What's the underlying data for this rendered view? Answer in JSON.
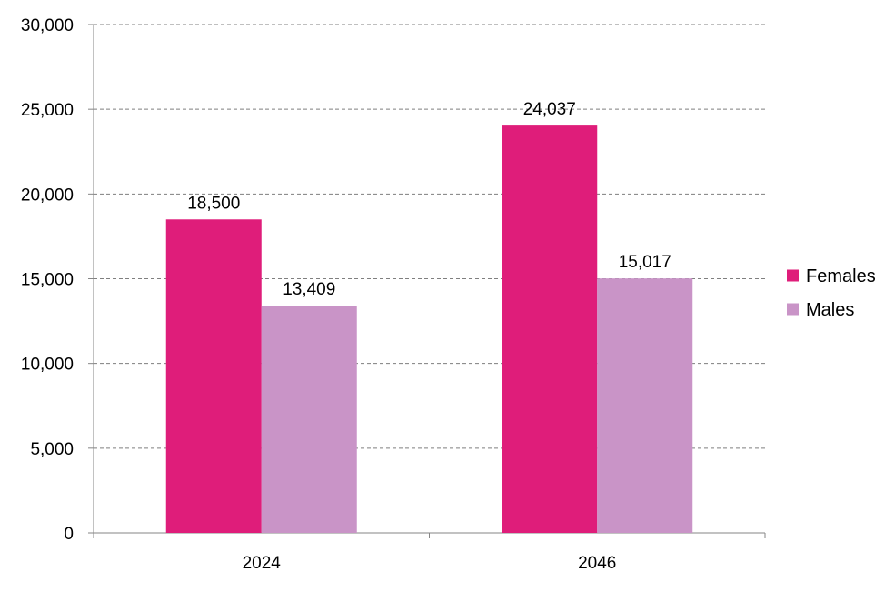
{
  "chart_data": {
    "type": "bar",
    "title": "",
    "xlabel": "",
    "ylabel": "",
    "categories": [
      "2024",
      "2046"
    ],
    "series": [
      {
        "name": "Females",
        "values": [
          18500,
          24037
        ],
        "color": "#DF1D7A"
      },
      {
        "name": "Males",
        "values": [
          13409,
          15017
        ],
        "color": "#C994C7"
      }
    ],
    "data_labels": [
      [
        "18,500",
        "24,037"
      ],
      [
        "13,409",
        "15,017"
      ]
    ],
    "ylim": [
      0,
      30000
    ],
    "yticks": [
      0,
      5000,
      10000,
      15000,
      20000,
      25000,
      30000
    ],
    "ytick_labels": [
      "0",
      "5,000",
      "10,000",
      "15,000",
      "20,000",
      "25,000",
      "30,000"
    ],
    "grid": true,
    "grid_style": "dashed",
    "legend_position": "right"
  }
}
